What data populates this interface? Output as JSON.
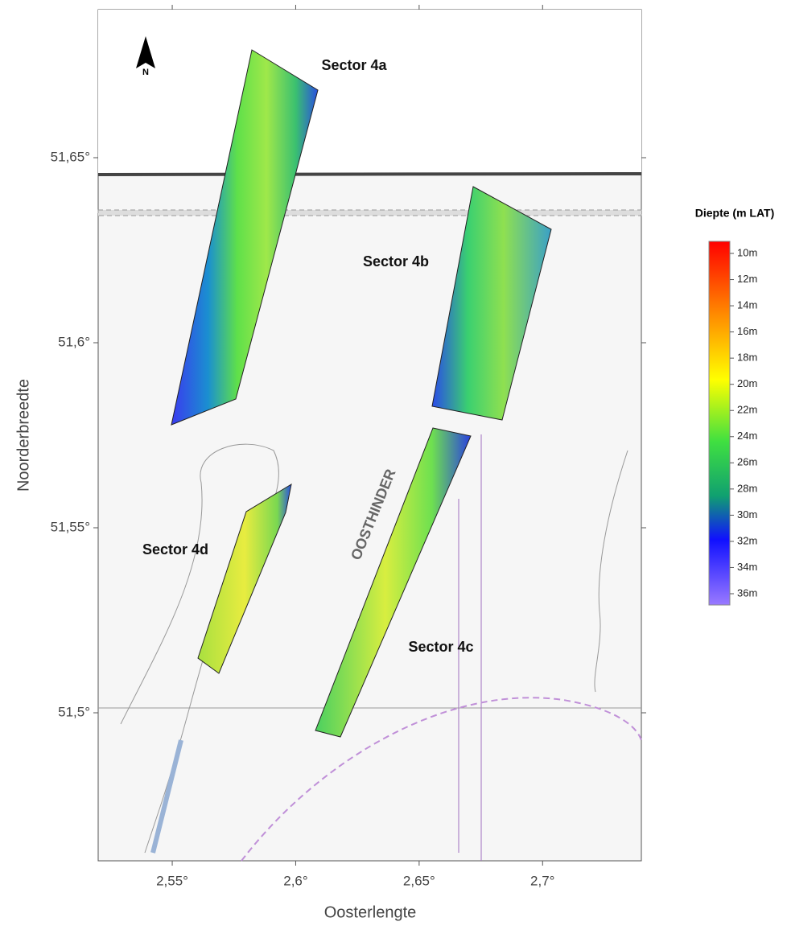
{
  "map": {
    "xlim": [
      2.52,
      2.74
    ],
    "ylim": [
      51.46,
      51.69
    ],
    "xticks": [
      {
        "value": 2.55,
        "label": "2,55°"
      },
      {
        "value": 2.6,
        "label": "2,6°"
      },
      {
        "value": 2.65,
        "label": "2,65°"
      },
      {
        "value": 2.7,
        "label": "2,7°"
      }
    ],
    "yticks": [
      {
        "value": 51.5,
        "label": "51,5°"
      },
      {
        "value": 51.55,
        "label": "51,55°"
      },
      {
        "value": 51.6,
        "label": "51,6°"
      },
      {
        "value": 51.65,
        "label": "51,65°"
      }
    ],
    "x_label": "Oosterlengte",
    "y_label": "Noorderbreedte",
    "north": "N",
    "sectors": [
      "Sector 4a",
      "Sector 4b",
      "Sector 4c",
      "Sector 4d"
    ],
    "place_names": [
      "OOSTHINDER"
    ],
    "legend": {
      "title": "Diepte (m LAT)",
      "labels": [
        "10m",
        "12m",
        "14m",
        "16m",
        "18m",
        "20m",
        "22m",
        "24m",
        "26m",
        "28m",
        "30m",
        "32m",
        "34m",
        "36m"
      ]
    }
  }
}
